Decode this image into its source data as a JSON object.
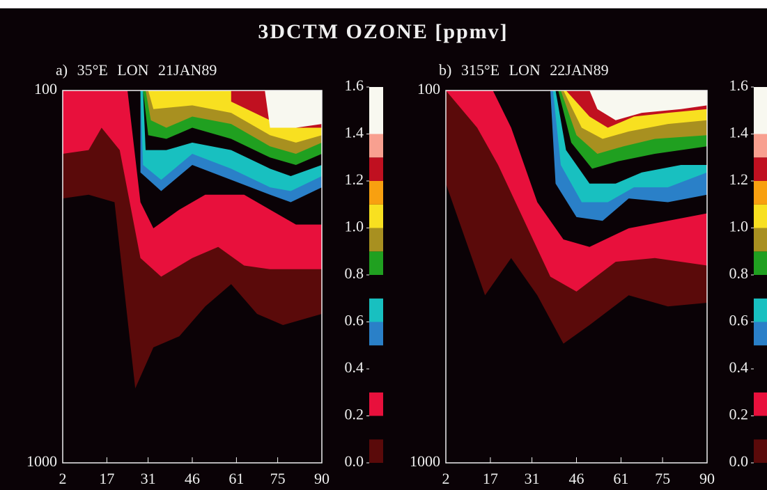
{
  "chart_data": {
    "type": "contour",
    "title": "3DCTM OZONE [ppmv]",
    "panels": [
      {
        "subtitle": "a) 35°E LON 21JAN89",
        "xticks": [
          2,
          17,
          31,
          46,
          61,
          75,
          90
        ],
        "xlim": [
          2,
          90
        ],
        "yticks": [
          {
            "value": 100,
            "label": "100"
          },
          {
            "value": 1000,
            "label": "1000"
          }
        ],
        "ylim": [
          1000,
          100
        ],
        "log_y": true
      },
      {
        "subtitle": "b) 315°E LON 22JAN89",
        "xticks": [
          2,
          17,
          31,
          46,
          61,
          75,
          90
        ],
        "xlim": [
          2,
          90
        ],
        "yticks": [
          {
            "value": 100,
            "label": "100"
          },
          {
            "value": 1000,
            "label": "1000"
          }
        ],
        "ylim": [
          1000,
          100
        ],
        "log_y": true
      }
    ],
    "colorbar": {
      "ticks": [
        {
          "value": 0,
          "label": "0.0"
        },
        {
          "value": 0.2,
          "label": "0.2"
        },
        {
          "value": 0.4,
          "label": "0.4"
        },
        {
          "value": 0.6,
          "label": "0.6"
        },
        {
          "value": 0.8,
          "label": "0.8"
        },
        {
          "value": 1,
          "label": "1.0"
        },
        {
          "value": 1.2,
          "label": "1.2"
        },
        {
          "value": 1.4,
          "label": "1.4"
        },
        {
          "value": 1.6,
          "label": "1.6"
        }
      ],
      "lim": [
        0,
        1.6
      ],
      "bounds": [
        0,
        0.1,
        0.2,
        0.3,
        0.4,
        0.5,
        0.6,
        0.7,
        0.8,
        0.9,
        1,
        1.1,
        1.2,
        1.3,
        1.4,
        1.6
      ],
      "colors": [
        "#5a0a0a",
        "#0a0206",
        "#e8103c",
        "#0a0206",
        "#0a0206",
        "#2a80c8",
        "#18c0c0",
        "#0a0206",
        "#20a020",
        "#a89020",
        "#f8e020",
        "#f8a010",
        "#c01020",
        "#f8a090",
        "#f8f8f0"
      ]
    }
  }
}
